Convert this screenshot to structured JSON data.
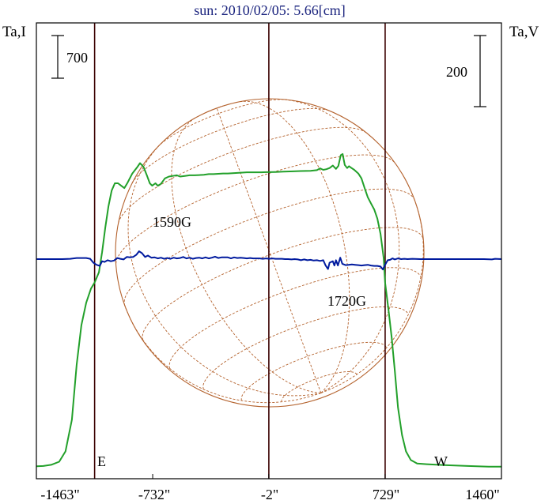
{
  "chart_data": {
    "type": "line",
    "title": "sun: 2010/02/05: 5.66[cm]",
    "y_left_label": "Ta,I",
    "y_right_label": "Ta,V",
    "scale_bar_left_label": "700",
    "scale_bar_right_label": "200",
    "x_tick_labels": [
      "-1463\"",
      "-732\"",
      "-2\"",
      "729\"",
      "1460\""
    ],
    "x_ticks": [
      -1463,
      -732,
      -2,
      729,
      1460
    ],
    "x_range": [
      -1463,
      1460
    ],
    "limb_markers": [
      {
        "label": "E",
        "x": -1097
      },
      {
        "label": "W",
        "x": 729
      }
    ],
    "vertical_lines_x": [
      -1097,
      -2,
      729
    ],
    "grid": false,
    "colors": {
      "title": "#1a237e",
      "intensity": "#22a02a",
      "polarization": "#001a9e",
      "disk": "#b4622d",
      "frame": "#000000",
      "marker_lines": "#3a0000"
    },
    "series": [
      {
        "name": "Ta,I",
        "points": [
          [
            -1463,
            35
          ],
          [
            -1420,
            40
          ],
          [
            -1370,
            60
          ],
          [
            -1320,
            110
          ],
          [
            -1280,
            280
          ],
          [
            -1240,
            800
          ],
          [
            -1210,
            1700
          ],
          [
            -1180,
            2350
          ],
          [
            -1150,
            2720
          ],
          [
            -1120,
            2950
          ],
          [
            -1097,
            3050
          ],
          [
            -1070,
            3220
          ],
          [
            -1050,
            3550
          ],
          [
            -1030,
            3950
          ],
          [
            -1010,
            4300
          ],
          [
            -990,
            4560
          ],
          [
            -970,
            4680
          ],
          [
            -950,
            4680
          ],
          [
            -930,
            4640
          ],
          [
            -910,
            4600
          ],
          [
            -890,
            4690
          ],
          [
            -860,
            4840
          ],
          [
            -830,
            4940
          ],
          [
            -812,
            5010
          ],
          [
            -790,
            4950
          ],
          [
            -770,
            4820
          ],
          [
            -750,
            4680
          ],
          [
            -735,
            4640
          ],
          [
            -715,
            4680
          ],
          [
            -700,
            4640
          ],
          [
            -680,
            4670
          ],
          [
            -655,
            4760
          ],
          [
            -630,
            4790
          ],
          [
            -605,
            4800
          ],
          [
            -580,
            4810
          ],
          [
            -560,
            4790
          ],
          [
            -530,
            4800
          ],
          [
            -500,
            4810
          ],
          [
            -470,
            4810
          ],
          [
            -440,
            4815
          ],
          [
            -410,
            4820
          ],
          [
            -380,
            4830
          ],
          [
            -350,
            4830
          ],
          [
            -320,
            4835
          ],
          [
            -290,
            4840
          ],
          [
            -260,
            4840
          ],
          [
            -230,
            4845
          ],
          [
            -200,
            4850
          ],
          [
            -170,
            4855
          ],
          [
            -140,
            4860
          ],
          [
            -110,
            4860
          ],
          [
            -80,
            4860
          ],
          [
            -50,
            4860
          ],
          [
            -20,
            4862
          ],
          [
            0,
            4862
          ],
          [
            40,
            4865
          ],
          [
            90,
            4870
          ],
          [
            150,
            4875
          ],
          [
            200,
            4880
          ],
          [
            260,
            4885
          ],
          [
            300,
            4895
          ],
          [
            320,
            4925
          ],
          [
            340,
            4900
          ],
          [
            360,
            4910
          ],
          [
            380,
            4930
          ],
          [
            400,
            4970
          ],
          [
            420,
            4915
          ],
          [
            435,
            4965
          ],
          [
            450,
            5140
          ],
          [
            462,
            5160
          ],
          [
            475,
            4980
          ],
          [
            490,
            4930
          ],
          [
            502,
            4960
          ],
          [
            515,
            4935
          ],
          [
            535,
            4900
          ],
          [
            560,
            4840
          ],
          [
            580,
            4760
          ],
          [
            600,
            4600
          ],
          [
            620,
            4450
          ],
          [
            640,
            4350
          ],
          [
            660,
            4250
          ],
          [
            680,
            4100
          ],
          [
            700,
            3850
          ],
          [
            720,
            3450
          ],
          [
            729,
            3050
          ],
          [
            750,
            2600
          ],
          [
            770,
            2150
          ],
          [
            790,
            1600
          ],
          [
            810,
            1000
          ],
          [
            835,
            550
          ],
          [
            860,
            280
          ],
          [
            890,
            140
          ],
          [
            930,
            80
          ],
          [
            990,
            70
          ],
          [
            1100,
            55
          ],
          [
            1250,
            40
          ],
          [
            1380,
            30
          ],
          [
            1460,
            30
          ]
        ]
      },
      {
        "name": "Ta,V",
        "points": [
          [
            -1463,
            0
          ],
          [
            -1400,
            0
          ],
          [
            -1300,
            0
          ],
          [
            -1250,
            1
          ],
          [
            -1210,
            3
          ],
          [
            -1150,
            3
          ],
          [
            -1125,
            1
          ],
          [
            -1105,
            -10
          ],
          [
            -1085,
            -16
          ],
          [
            -1065,
            -19
          ],
          [
            -1050,
            -6
          ],
          [
            -1035,
            -8
          ],
          [
            -1015,
            -3
          ],
          [
            -995,
            -6
          ],
          [
            -975,
            -4
          ],
          [
            -955,
            3
          ],
          [
            -935,
            1
          ],
          [
            -915,
            -1
          ],
          [
            -895,
            6
          ],
          [
            -875,
            5
          ],
          [
            -855,
            6
          ],
          [
            -835,
            12
          ],
          [
            -818,
            22
          ],
          [
            -800,
            17
          ],
          [
            -780,
            6
          ],
          [
            -762,
            10
          ],
          [
            -740,
            4
          ],
          [
            -720,
            5
          ],
          [
            -700,
            2
          ],
          [
            -680,
            4
          ],
          [
            -660,
            1
          ],
          [
            -640,
            3
          ],
          [
            -620,
            1
          ],
          [
            -600,
            4
          ],
          [
            -580,
            2
          ],
          [
            -560,
            3
          ],
          [
            -540,
            6
          ],
          [
            -520,
            2
          ],
          [
            -500,
            4
          ],
          [
            -480,
            1
          ],
          [
            -460,
            3
          ],
          [
            -440,
            4
          ],
          [
            -420,
            2
          ],
          [
            -400,
            5
          ],
          [
            -380,
            2
          ],
          [
            -360,
            4
          ],
          [
            -340,
            7
          ],
          [
            -320,
            3
          ],
          [
            -300,
            5
          ],
          [
            -280,
            5
          ],
          [
            -260,
            5
          ],
          [
            -240,
            2
          ],
          [
            -220,
            5
          ],
          [
            -200,
            3
          ],
          [
            -180,
            4
          ],
          [
            -160,
            3
          ],
          [
            -140,
            2
          ],
          [
            -120,
            3
          ],
          [
            -100,
            2
          ],
          [
            -80,
            2
          ],
          [
            -60,
            2
          ],
          [
            -40,
            1
          ],
          [
            -20,
            2
          ],
          [
            0,
            1
          ],
          [
            20,
            2
          ],
          [
            40,
            1
          ],
          [
            60,
            1
          ],
          [
            80,
            1
          ],
          [
            100,
            0
          ],
          [
            120,
            0
          ],
          [
            140,
            -1
          ],
          [
            160,
            0
          ],
          [
            180,
            -1
          ],
          [
            200,
            -3
          ],
          [
            220,
            -1
          ],
          [
            240,
            -3
          ],
          [
            260,
            -2
          ],
          [
            280,
            -4
          ],
          [
            300,
            -3
          ],
          [
            320,
            -5
          ],
          [
            340,
            -3
          ],
          [
            355,
            -18
          ],
          [
            370,
            -28
          ],
          [
            380,
            -10
          ],
          [
            400,
            -6
          ],
          [
            410,
            -18
          ],
          [
            420,
            -3
          ],
          [
            432,
            -18
          ],
          [
            447,
            4
          ],
          [
            460,
            -13
          ],
          [
            480,
            -17
          ],
          [
            500,
            -16
          ],
          [
            520,
            -15
          ],
          [
            540,
            -16
          ],
          [
            560,
            -17
          ],
          [
            580,
            -18
          ],
          [
            600,
            -17
          ],
          [
            620,
            -16
          ],
          [
            640,
            -18
          ],
          [
            660,
            -19
          ],
          [
            680,
            -19
          ],
          [
            700,
            -21
          ],
          [
            715,
            -29
          ],
          [
            729,
            -16
          ],
          [
            745,
            -3
          ],
          [
            760,
            -2
          ],
          [
            775,
            2
          ],
          [
            790,
            -1
          ],
          [
            810,
            2
          ],
          [
            830,
            0
          ],
          [
            850,
            1
          ],
          [
            870,
            0
          ],
          [
            900,
            1
          ],
          [
            950,
            0
          ],
          [
            1000,
            0
          ],
          [
            1050,
            0
          ],
          [
            1100,
            0
          ],
          [
            1150,
            0
          ],
          [
            1200,
            0
          ],
          [
            1300,
            0
          ],
          [
            1350,
            0
          ],
          [
            1400,
            -1
          ],
          [
            1420,
            1
          ],
          [
            1460,
            0
          ]
        ]
      }
    ],
    "annotations": [
      {
        "text": "1590G",
        "x": -818
      },
      {
        "text": "1720G",
        "x": 447
      }
    ]
  }
}
